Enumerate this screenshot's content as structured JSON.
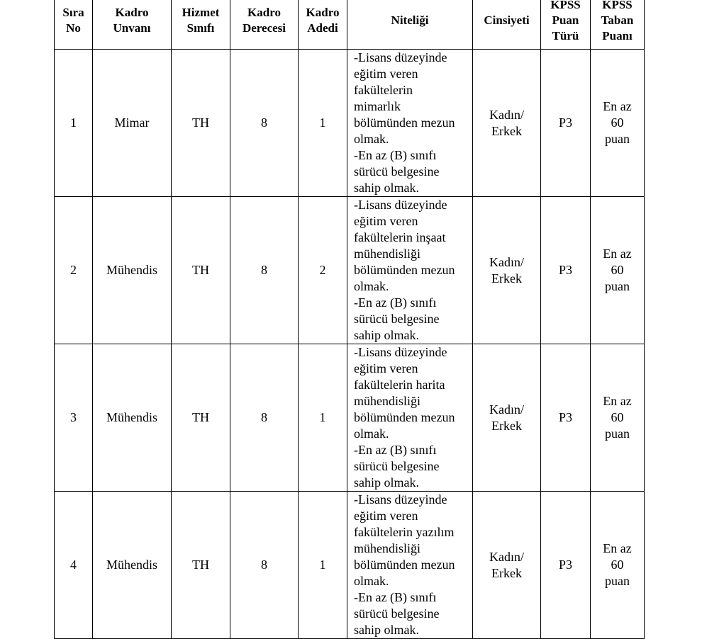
{
  "headers": [
    [
      "Sıra",
      "No"
    ],
    [
      "Kadro",
      "Unvanı"
    ],
    [
      "Hizmet",
      "Sınıfı"
    ],
    [
      "Kadro",
      "Derecesi"
    ],
    [
      "Kadro",
      "Adedi"
    ],
    [
      "Niteliği"
    ],
    [
      "Cinsiyeti"
    ],
    [
      "KPSS",
      "Puan",
      "Türü"
    ],
    [
      "KPSS",
      "Taban",
      "Puanı"
    ]
  ],
  "rows": [
    {
      "no": "1",
      "unvan": "Mimar",
      "sinif": "TH",
      "derece": "8",
      "adet": "1",
      "nitelik": [
        "-Lisans düzeyinde",
        "eğitim veren",
        "fakültelerin",
        "mimarlık",
        "bölümünden mezun",
        "olmak.",
        "-En az (B) sınıfı",
        "sürücü belgesine",
        "sahip olmak."
      ],
      "cinsiyet": [
        "Kadın/",
        "Erkek"
      ],
      "puan_turu": "P3",
      "taban": [
        "En az",
        "60",
        "puan"
      ]
    },
    {
      "no": "2",
      "unvan": "Mühendis",
      "sinif": "TH",
      "derece": "8",
      "adet": "2",
      "nitelik": [
        "-Lisans düzeyinde",
        "eğitim veren",
        "fakültelerin inşaat",
        "mühendisliği",
        "bölümünden mezun",
        "olmak.",
        "-En az (B) sınıfı",
        "sürücü belgesine",
        "sahip olmak."
      ],
      "cinsiyet": [
        "Kadın/",
        "Erkek"
      ],
      "puan_turu": "P3",
      "taban": [
        "En az",
        "60",
        "puan"
      ]
    },
    {
      "no": "3",
      "unvan": "Mühendis",
      "sinif": "TH",
      "derece": "8",
      "adet": "1",
      "nitelik": [
        "-Lisans düzeyinde",
        "eğitim veren",
        "fakültelerin harita",
        "mühendisliği",
        "bölümünden mezun",
        "olmak.",
        "-En az (B) sınıfı",
        "sürücü belgesine",
        "sahip olmak."
      ],
      "cinsiyet": [
        "Kadın/",
        "Erkek"
      ],
      "puan_turu": "P3",
      "taban": [
        "En az",
        "60",
        "puan"
      ]
    },
    {
      "no": "4",
      "unvan": "Mühendis",
      "sinif": "TH",
      "derece": "8",
      "adet": "1",
      "nitelik": [
        "-Lisans düzeyinde",
        "eğitim veren",
        "fakültelerin yazılım",
        "mühendisliği",
        "bölümünden mezun",
        "olmak.",
        "-En az (B) sınıfı",
        "sürücü belgesine",
        "sahip olmak."
      ],
      "cinsiyet": [
        "Kadın/",
        "Erkek"
      ],
      "puan_turu": "P3",
      "taban": [
        "En az",
        "60",
        "puan"
      ]
    }
  ]
}
